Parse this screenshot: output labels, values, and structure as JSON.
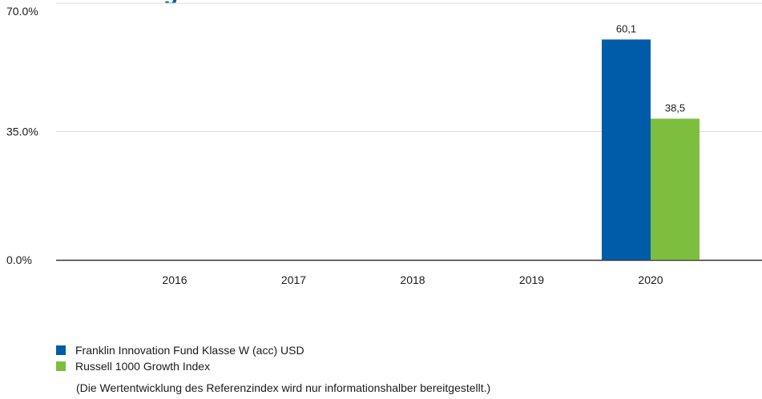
{
  "chart_data": {
    "type": "bar",
    "categories": [
      "2016",
      "2017",
      "2018",
      "2019",
      "2020"
    ],
    "series": [
      {
        "name": "Franklin Innovation Fund Klasse W (acc) USD",
        "color": "#005ca9",
        "values": [
          null,
          null,
          null,
          null,
          60.1
        ],
        "labels": [
          "",
          "",
          "",
          "",
          "60,1"
        ]
      },
      {
        "name": "Russell 1000 Growth Index",
        "color": "#7ebe3f",
        "values": [
          null,
          null,
          null,
          null,
          38.5
        ],
        "labels": [
          "",
          "",
          "",
          "",
          "38,5"
        ]
      }
    ],
    "ylim": [
      0,
      70
    ],
    "yticks": [
      0,
      35,
      70
    ],
    "ytick_labels": [
      "0.0%",
      "35.0%",
      "70.0%"
    ],
    "grid": true,
    "legend_position": "bottom-left"
  },
  "note": "(Die Wertentwicklung des Referenzindex wird nur informationshalber bereitgestellt.)",
  "colors": {
    "title_fragment": "#005ca9",
    "gridline": "#dcdcdc",
    "axis": "#333333"
  }
}
